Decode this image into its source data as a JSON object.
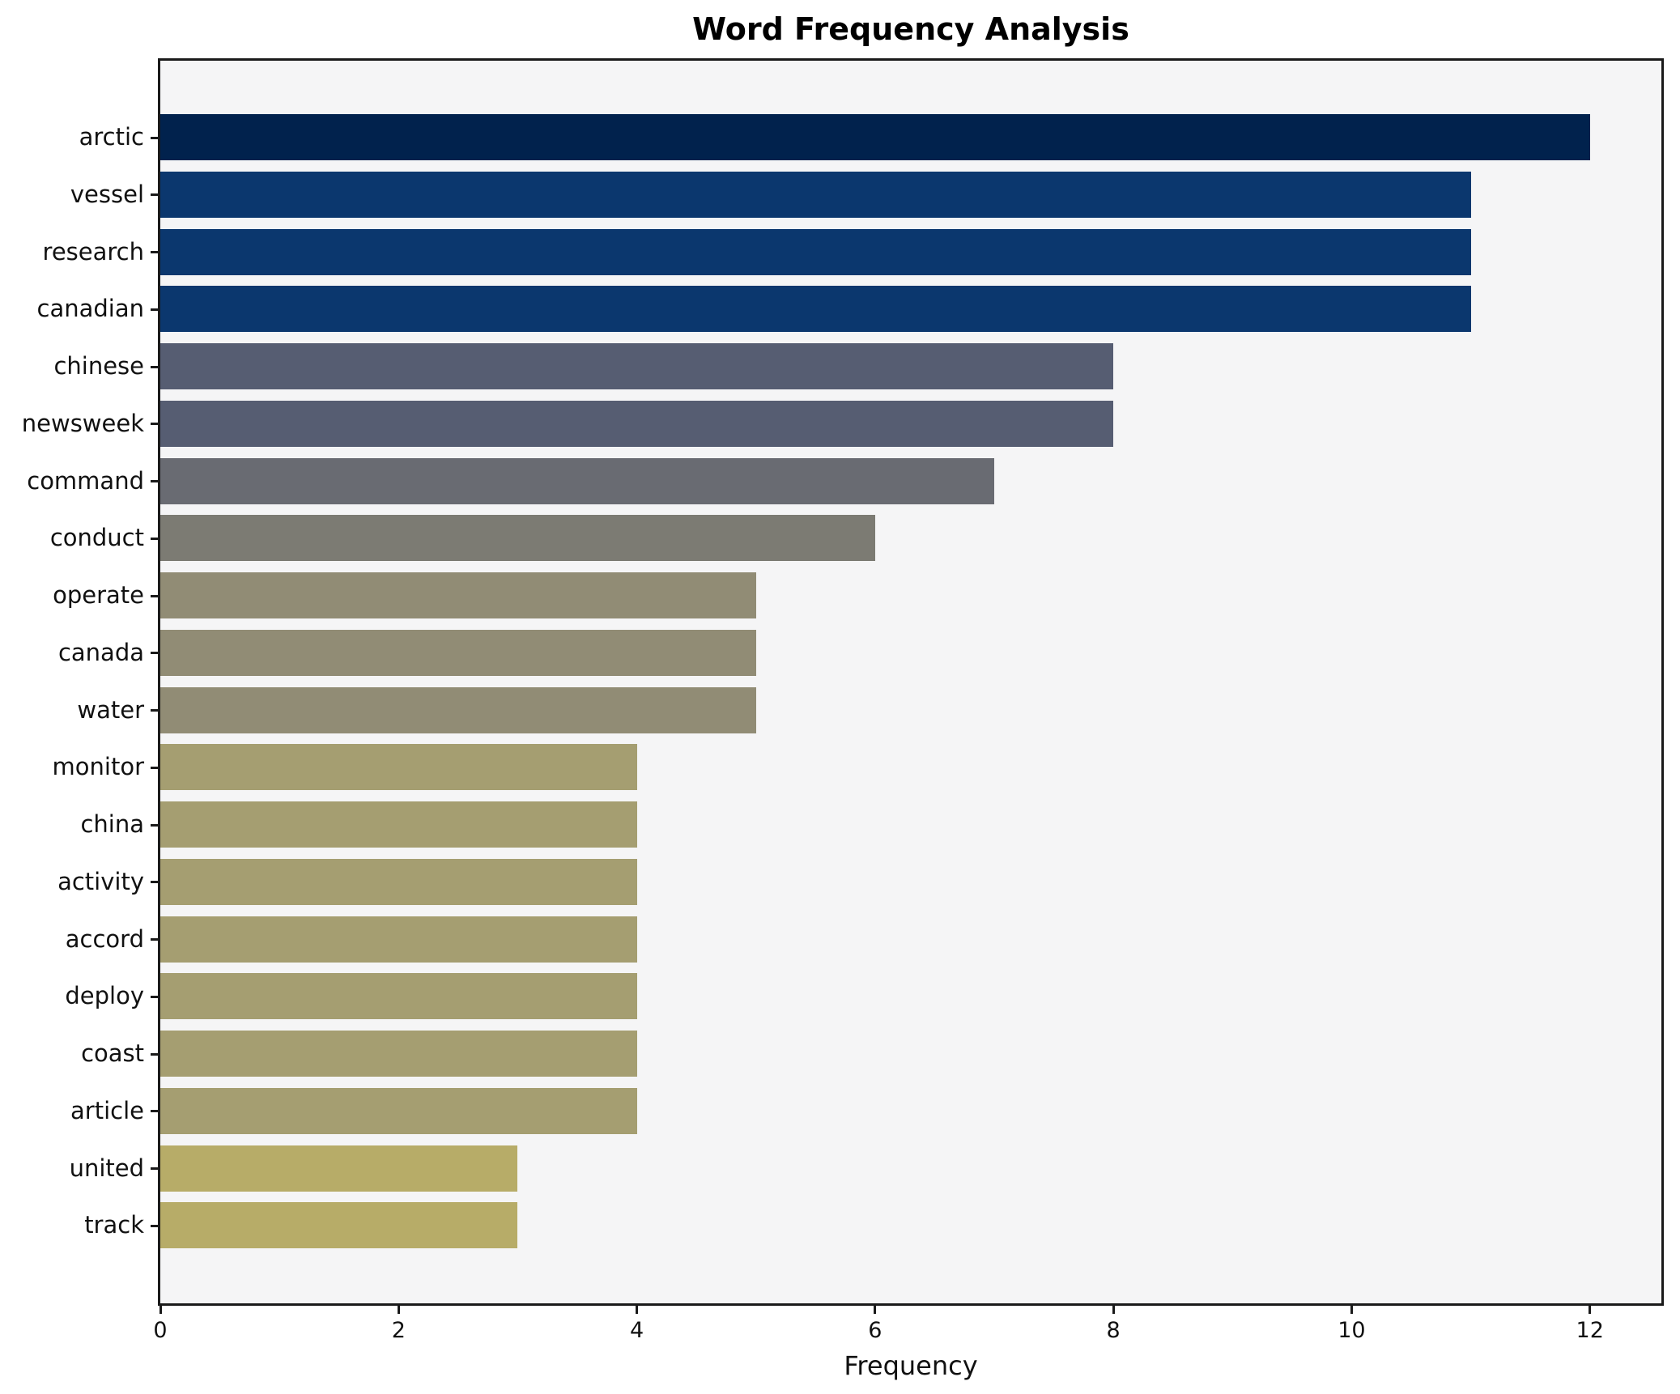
{
  "title": "Word Frequency Analysis",
  "xlabel": "Frequency",
  "chart_data": {
    "type": "bar",
    "orientation": "horizontal",
    "title": "Word Frequency Analysis",
    "xlabel": "Frequency",
    "ylabel": "",
    "grid": false,
    "legend": "none",
    "xlim": [
      0,
      12.6
    ],
    "xticks": [
      0,
      2,
      4,
      6,
      8,
      10,
      12
    ],
    "plot_background": "#f5f5f6",
    "figure_background": "#ffffff",
    "categories": [
      "arctic",
      "vessel",
      "research",
      "canadian",
      "chinese",
      "newsweek",
      "command",
      "conduct",
      "operate",
      "canada",
      "water",
      "monitor",
      "china",
      "activity",
      "accord",
      "deploy",
      "coast",
      "article",
      "united",
      "track"
    ],
    "values": [
      12,
      11,
      11,
      11,
      8,
      8,
      7,
      6,
      5,
      5,
      5,
      4,
      4,
      4,
      4,
      4,
      4,
      4,
      3,
      3
    ],
    "bar_colors": [
      "#01224d",
      "#0b376e",
      "#0b376e",
      "#0b376e",
      "#565d72",
      "#565d72",
      "#696b72",
      "#7c7b73",
      "#918c75",
      "#918c75",
      "#918c75",
      "#a59e71",
      "#a59e71",
      "#a59e71",
      "#a59e71",
      "#a59e71",
      "#a59e71",
      "#a59e71",
      "#b7ac68",
      "#b7ac68"
    ]
  }
}
